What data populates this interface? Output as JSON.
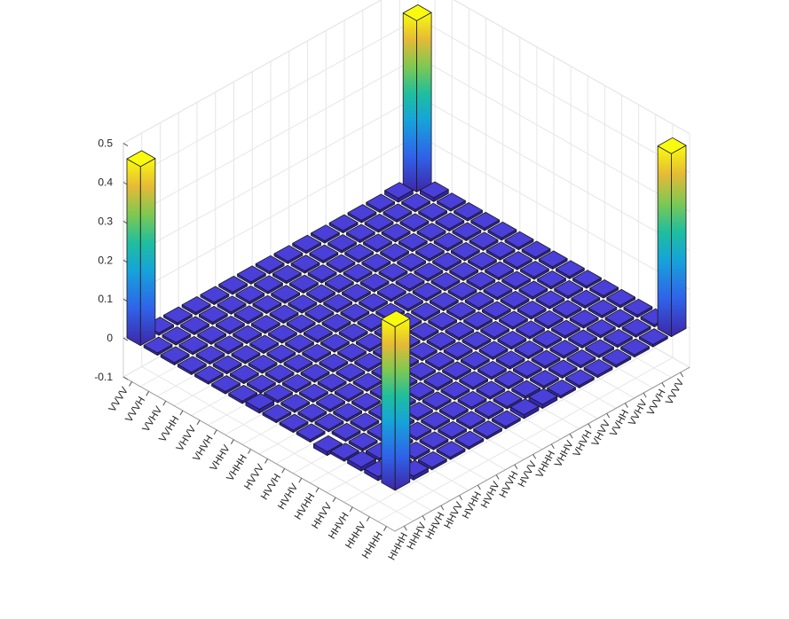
{
  "chart_data": {
    "type": "bar3d",
    "title": "",
    "row_labels": [
      "HHHH",
      "HHHV",
      "HHVH",
      "HHVV",
      "HVHH",
      "HVHV",
      "HVVH",
      "HVVV",
      "VHHH",
      "VHHV",
      "VHVH",
      "VHVV",
      "VVHH",
      "VVHV",
      "VVVH",
      "VVVV"
    ],
    "col_labels": [
      "HHHH",
      "HHHV",
      "HHVH",
      "HHVV",
      "HVHH",
      "HVHV",
      "HVVH",
      "HVVV",
      "VHHH",
      "VHHV",
      "VHVH",
      "VHVV",
      "VVHH",
      "VVHV",
      "VVVH",
      "VVVV"
    ],
    "zlim": [
      -0.1,
      0.5
    ],
    "zticks": [
      -0.1,
      0,
      0.1,
      0.2,
      0.3,
      0.4,
      0.5
    ],
    "corner_values": {
      "HHHH-HHHH": 0.42,
      "HHHH-VVVV": 0.47,
      "VVVV-HHHH": 0.46,
      "VVVV-VVVV": 0.44
    },
    "default_value": 0.0,
    "small_offdiag_values": [
      {
        "row": "HHHH",
        "col": "HHHV",
        "value": 0.01
      },
      {
        "row": "HHHV",
        "col": "HHHH",
        "value": 0.01
      },
      {
        "row": "HHVH",
        "col": "HHHH",
        "value": 0.01
      },
      {
        "row": "VVVV",
        "col": "VVVH",
        "value": 0.01
      },
      {
        "row": "VVVH",
        "col": "VVVV",
        "value": 0.01
      },
      {
        "row": "HVHH",
        "col": "HHHH",
        "value": -0.01
      },
      {
        "row": "HHHH",
        "col": "HVVV",
        "value": 0.01
      },
      {
        "row": "VHHH",
        "col": "HHHH",
        "value": 0.01
      },
      {
        "row": "HHHH",
        "col": "VHHH",
        "value": 0.01
      }
    ],
    "grid": true,
    "colormap": "parula"
  }
}
